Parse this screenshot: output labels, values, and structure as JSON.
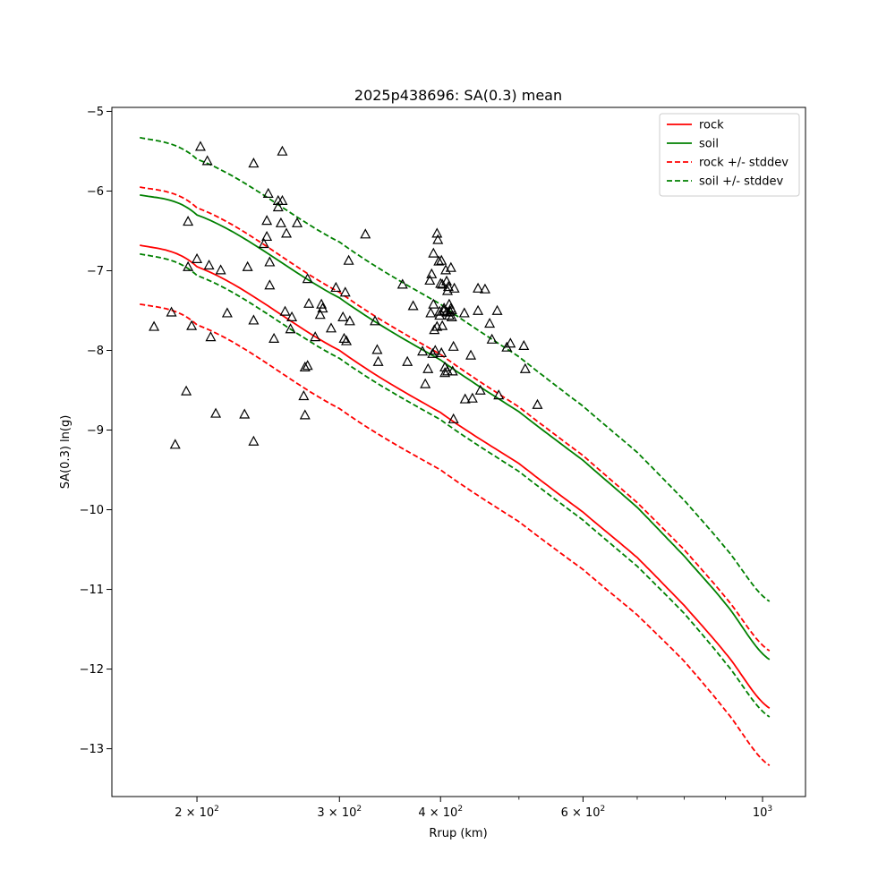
{
  "chart_data": {
    "type": "scatter",
    "title": "2025p438696: SA(0.3) mean",
    "xlabel": "Rrup (km)",
    "ylabel": "SA(0.3) ln(g)",
    "xscale": "log",
    "xlim": [
      157,
      1130
    ],
    "ylim": [
      -13.6,
      -4.95
    ],
    "grid": false,
    "legend_position": "top-right",
    "x_ticks": [
      {
        "value": 200,
        "base": "2",
        "exp": "2"
      },
      {
        "value": 300,
        "base": "3",
        "exp": "2"
      },
      {
        "value": 400,
        "base": "4",
        "exp": "2"
      },
      {
        "value": 600,
        "base": "6",
        "exp": "2"
      },
      {
        "value": 1000,
        "base": "10",
        "exp": "3"
      }
    ],
    "y_ticks": [
      {
        "value": -5,
        "label": "−5"
      },
      {
        "value": -6,
        "label": "−6"
      },
      {
        "value": -7,
        "label": "−7"
      },
      {
        "value": -8,
        "label": "−8"
      },
      {
        "value": -9,
        "label": "−9"
      },
      {
        "value": -10,
        "label": "−10"
      },
      {
        "value": -11,
        "label": "−11"
      },
      {
        "value": -12,
        "label": "−12"
      },
      {
        "value": -13,
        "label": "−13"
      }
    ],
    "curve_x": [
      170,
      200,
      300,
      400,
      500,
      600,
      700,
      800,
      900,
      1020
    ],
    "lines": [
      {
        "name": "rock",
        "color": "#ff0000",
        "dash": "solid",
        "y": [
          -6.68,
          -6.95,
          -8.0,
          -8.78,
          -9.42,
          -10.03,
          -10.6,
          -11.2,
          -11.8,
          -12.49
        ]
      },
      {
        "name": "soil",
        "color": "#008000",
        "dash": "solid",
        "y": [
          -6.05,
          -6.3,
          -7.34,
          -8.12,
          -8.77,
          -9.38,
          -9.97,
          -10.58,
          -11.18,
          -11.88
        ]
      },
      {
        "name": "rock +/- stddev",
        "color": "#ff0000",
        "dash": "dashed",
        "y": [
          -5.95,
          -6.21,
          -7.27,
          -8.05,
          -8.71,
          -9.32,
          -9.91,
          -10.5,
          -11.1,
          -11.77
        ]
      },
      {
        "name": "rock +/- stddev",
        "color": "#ff0000",
        "dash": "dashed",
        "legend": false,
        "y": [
          -7.42,
          -7.68,
          -8.73,
          -9.5,
          -10.15,
          -10.75,
          -11.32,
          -11.9,
          -12.52,
          -13.21
        ]
      },
      {
        "name": "soil +/- stddev",
        "color": "#008000",
        "dash": "dashed",
        "y": [
          -5.33,
          -5.6,
          -6.64,
          -7.42,
          -8.08,
          -8.7,
          -9.28,
          -9.88,
          -10.48,
          -11.15
        ]
      },
      {
        "name": "soil +/- stddev",
        "color": "#008000",
        "dash": "dashed",
        "legend": false,
        "y": [
          -6.79,
          -7.06,
          -8.1,
          -8.87,
          -9.52,
          -10.13,
          -10.71,
          -11.3,
          -11.92,
          -12.6
        ]
      }
    ],
    "observations": [
      [
        177,
        -7.7
      ],
      [
        186,
        -7.52
      ],
      [
        188,
        -9.18
      ],
      [
        194,
        -8.51
      ],
      [
        195,
        -6.38
      ],
      [
        195,
        -6.95
      ],
      [
        197,
        -7.69
      ],
      [
        200,
        -6.85
      ],
      [
        202,
        -5.44
      ],
      [
        206,
        -5.62
      ],
      [
        207,
        -6.93
      ],
      [
        208,
        -7.83
      ],
      [
        211,
        -8.79
      ],
      [
        214,
        -6.99
      ],
      [
        218,
        -7.53
      ],
      [
        229,
        -8.8
      ],
      [
        231,
        -6.95
      ],
      [
        235,
        -9.14
      ],
      [
        235,
        -7.62
      ],
      [
        235,
        -5.65
      ],
      [
        242,
        -6.66
      ],
      [
        244,
        -6.37
      ],
      [
        245,
        -6.03
      ],
      [
        244,
        -6.57
      ],
      [
        246,
        -6.89
      ],
      [
        246,
        -7.18
      ],
      [
        249,
        -7.85
      ],
      [
        252,
        -6.12
      ],
      [
        252,
        -6.2
      ],
      [
        254,
        -6.4
      ],
      [
        255,
        -6.12
      ],
      [
        255,
        -5.5
      ],
      [
        257,
        -7.51
      ],
      [
        258,
        -6.53
      ],
      [
        261,
        -7.73
      ],
      [
        262,
        -7.58
      ],
      [
        266,
        -6.4
      ],
      [
        271,
        -8.57
      ],
      [
        272,
        -8.81
      ],
      [
        272,
        -8.21
      ],
      [
        274,
        -8.19
      ],
      [
        274,
        -7.1
      ],
      [
        275,
        -7.41
      ],
      [
        280,
        -7.83
      ],
      [
        284,
        -7.55
      ],
      [
        285,
        -7.42
      ],
      [
        286,
        -7.47
      ],
      [
        293,
        -7.72
      ],
      [
        297,
        -7.21
      ],
      [
        303,
        -7.58
      ],
      [
        304,
        -7.85
      ],
      [
        305,
        -7.27
      ],
      [
        306,
        -7.88
      ],
      [
        308,
        -6.87
      ],
      [
        309,
        -7.63
      ],
      [
        323,
        -6.54
      ],
      [
        332,
        -7.63
      ],
      [
        334,
        -7.99
      ],
      [
        335,
        -8.14
      ],
      [
        359,
        -7.17
      ],
      [
        364,
        -8.14
      ],
      [
        370,
        -7.44
      ],
      [
        380,
        -8.01
      ],
      [
        383,
        -8.42
      ],
      [
        386,
        -8.23
      ],
      [
        388,
        -7.12
      ],
      [
        389,
        -7.53
      ],
      [
        390,
        -7.04
      ],
      [
        391,
        -8.04
      ],
      [
        392,
        -6.78
      ],
      [
        392,
        -7.42
      ],
      [
        393,
        -7.74
      ],
      [
        394,
        -8.0
      ],
      [
        396,
        -6.53
      ],
      [
        396,
        -7.7
      ],
      [
        397,
        -6.61
      ],
      [
        398,
        -6.88
      ],
      [
        399,
        -7.51
      ],
      [
        399,
        -7.56
      ],
      [
        400,
        -7.16
      ],
      [
        401,
        -6.87
      ],
      [
        401,
        -8.03
      ],
      [
        402,
        -7.17
      ],
      [
        402,
        -7.69
      ],
      [
        404,
        -7.47
      ],
      [
        404,
        -7.5
      ],
      [
        405,
        -8.21
      ],
      [
        405,
        -8.28
      ],
      [
        406,
        -6.99
      ],
      [
        407,
        -7.13
      ],
      [
        407,
        -7.52
      ],
      [
        408,
        -7.25
      ],
      [
        408,
        -8.26
      ],
      [
        409,
        -7.2
      ],
      [
        410,
        -7.42
      ],
      [
        410,
        -7.56
      ],
      [
        411,
        -7.51
      ],
      [
        412,
        -6.96
      ],
      [
        412,
        -7.47
      ],
      [
        413,
        -7.49
      ],
      [
        413,
        -7.58
      ],
      [
        414,
        -8.26
      ],
      [
        415,
        -7.95
      ],
      [
        416,
        -7.22
      ],
      [
        415,
        -8.86
      ],
      [
        428,
        -7.53
      ],
      [
        429,
        -8.61
      ],
      [
        436,
        -8.06
      ],
      [
        438,
        -8.6
      ],
      [
        445,
        -7.22
      ],
      [
        445,
        -7.5
      ],
      [
        448,
        -8.5
      ],
      [
        454,
        -7.23
      ],
      [
        460,
        -7.66
      ],
      [
        463,
        -7.86
      ],
      [
        470,
        -7.5
      ],
      [
        472,
        -8.56
      ],
      [
        483,
        -7.96
      ],
      [
        488,
        -7.91
      ],
      [
        507,
        -7.94
      ],
      [
        509,
        -8.23
      ],
      [
        527,
        -8.68
      ]
    ]
  }
}
